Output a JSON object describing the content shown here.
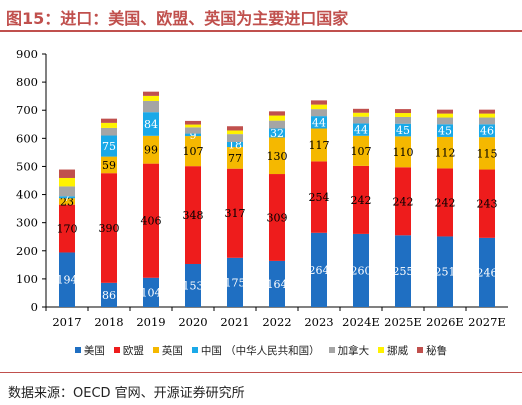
{
  "title": "图15：进口：美国、欧盟、英国为主要进口国家",
  "source": "数据来源：OECD 官网、开源证券研究所",
  "chart_data": {
    "type": "bar",
    "stacked": true,
    "categories": [
      "2017",
      "2018",
      "2019",
      "2020",
      "2021",
      "2022",
      "2023",
      "2024E",
      "2025E",
      "2026E",
      "2027E"
    ],
    "ylim": [
      0,
      900
    ],
    "yticks": [
      0,
      100,
      200,
      300,
      400,
      500,
      600,
      700,
      800,
      900
    ],
    "grid": false,
    "legend_position": "bottom",
    "xlabel": "",
    "ylabel": "",
    "series": [
      {
        "name": "美国",
        "color": "#1f6fc2",
        "labeled": true,
        "label_color": "#ffffff",
        "values": [
          194,
          86,
          104,
          153,
          175,
          164,
          264,
          260,
          255,
          251,
          246
        ]
      },
      {
        "name": "欧盟",
        "color": "#ee1c1c",
        "labeled": true,
        "label_color": "#000000",
        "values": [
          170,
          390,
          406,
          348,
          317,
          309,
          254,
          242,
          242,
          242,
          243
        ]
      },
      {
        "name": "英国",
        "color": "#f5b800",
        "labeled": true,
        "label_color": "#000000",
        "values": [
          23,
          59,
          99,
          107,
          77,
          130,
          117,
          107,
          110,
          112,
          115
        ]
      },
      {
        "name": "中国  （中华人民共和国）",
        "color": "#1aa9e8",
        "labeled": true,
        "label_color": "#ffffff",
        "values": [
          7,
          75,
          84,
          9,
          18,
          32,
          44,
          44,
          45,
          45,
          46
        ]
      },
      {
        "name": "加拿大",
        "color": "#a5a5a5",
        "labeled": false,
        "values": [
          35,
          27,
          40,
          22,
          28,
          28,
          25,
          24,
          24,
          24,
          24
        ]
      },
      {
        "name": "挪威",
        "color": "#fff200",
        "labeled": false,
        "values": [
          30,
          18,
          18,
          10,
          13,
          18,
          16,
          14,
          14,
          14,
          14
        ]
      },
      {
        "name": "秘鲁",
        "color": "#c0504d",
        "labeled": false,
        "values": [
          30,
          15,
          15,
          13,
          15,
          15,
          15,
          14,
          14,
          14,
          14
        ]
      }
    ]
  }
}
